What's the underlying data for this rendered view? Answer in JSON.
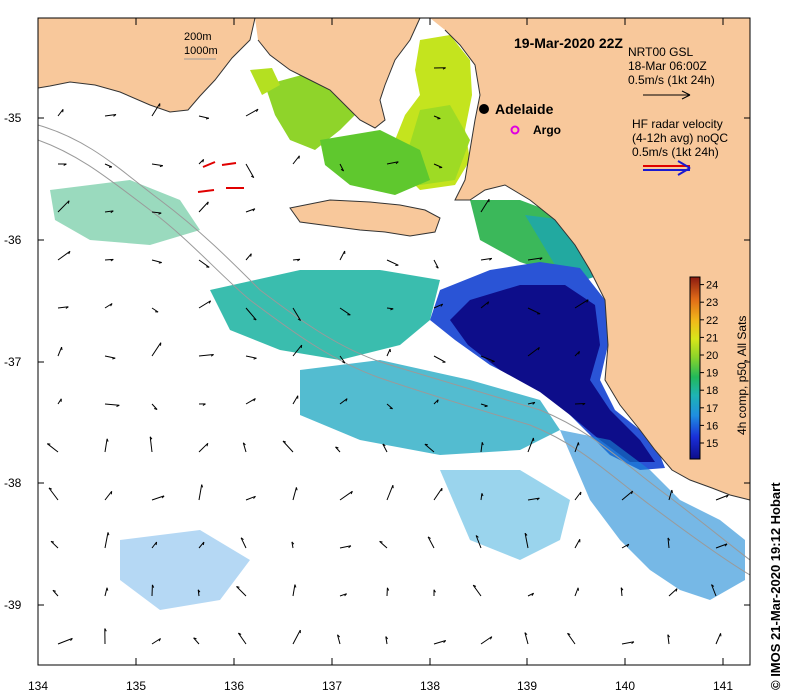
{
  "map": {
    "date_title": "19-Mar-2020 22Z",
    "bathymetry_legend": [
      "200m",
      "1000m"
    ],
    "city": "Adelaide",
    "argo": "Argo",
    "gsl_legend": [
      "NRT00 GSL",
      "18-Mar 06:00Z",
      "0.5m/s (1kt 24h)"
    ],
    "radar_legend": [
      "HF radar velocity",
      "(4-12h avg) noQC",
      "0.5m/s (1kt 24h)"
    ],
    "colorbar_label": "4h comp, p50, All Sats",
    "colorbar_ticks": [
      "15",
      "16",
      "17",
      "18",
      "19",
      "20",
      "21",
      "22",
      "23",
      "24"
    ],
    "lat_ticks": [
      "-35",
      "-36",
      "-37",
      "-38",
      "-39"
    ],
    "lon_ticks": [
      "134",
      "135",
      "136",
      "137",
      "138",
      "139",
      "140",
      "141"
    ],
    "credit": "© IMOS 21-Mar-2020 19:12 Hobart",
    "colors": {
      "land": "#f8c89b",
      "cold": "#0d0d8a",
      "warm": "#c8e000",
      "frame": "#000000"
    }
  }
}
